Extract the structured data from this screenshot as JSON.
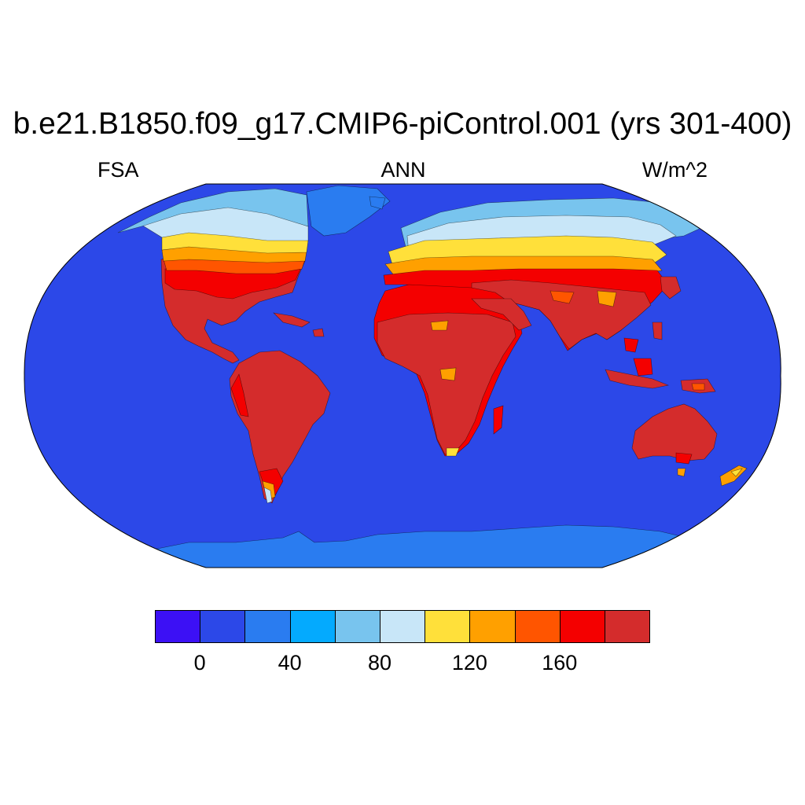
{
  "title": "b.e21.B1850.f09_g17.CMIP6-piControl.001 (yrs 301-400)",
  "subtitle_left": "FSA",
  "subtitle_center": "ANN",
  "subtitle_right": "W/m^2",
  "colors": {
    "ocean": "#2c48e8",
    "land_hot": "#d42c2c",
    "land_red": "#f40000",
    "land_orange_red": "#ff5500",
    "land_orange": "#ffa000",
    "land_yellow": "#ffe03a",
    "land_pale_blue": "#c8e6f8",
    "land_light_blue": "#78c4ee",
    "land_ice": "#2a7cf0",
    "coastline": "#000000"
  },
  "colorbar": {
    "colors": [
      "#3c10f5",
      "#2c48e8",
      "#2a7cf0",
      "#04aafe",
      "#78c4ee",
      "#c8e6f8",
      "#ffe03a",
      "#ffa000",
      "#ff5500",
      "#f40000",
      "#d42c2c"
    ],
    "labels": [
      "0",
      "40",
      "80",
      "120",
      "160"
    ],
    "label_values": [
      0,
      40,
      80,
      120,
      160
    ]
  }
}
